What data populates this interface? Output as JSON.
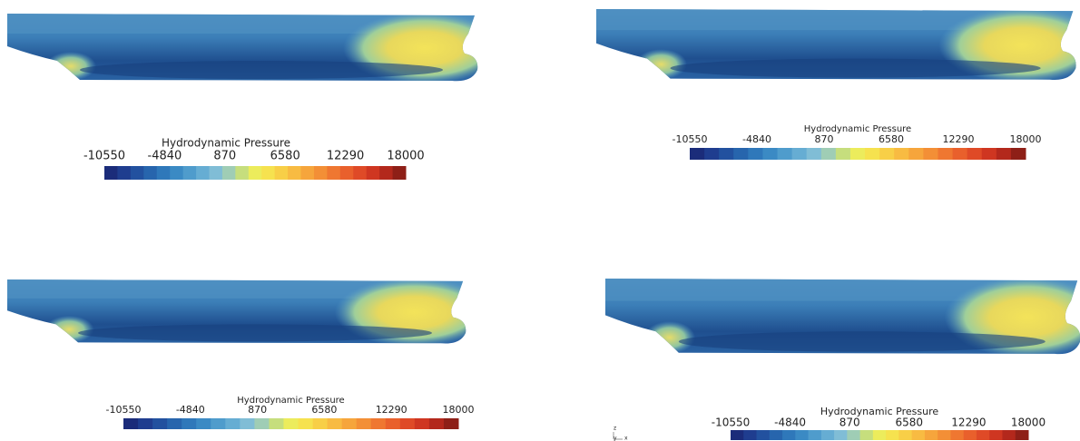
{
  "panels": [
    {
      "colorbar": {
        "title": "Hydrodynamic Pressure",
        "ticks": [
          -10550,
          -4840,
          870,
          6580,
          12290,
          18000
        ]
      }
    },
    {
      "colorbar": {
        "title": "Hydrodynamic Pressure",
        "ticks": [
          -10550,
          -4840,
          870,
          6580,
          12290,
          18000
        ]
      }
    },
    {
      "colorbar": {
        "title": "Hydrodynamic Pressure",
        "ticks": [
          -10550,
          -4840,
          870,
          6580,
          12290,
          18000
        ]
      }
    },
    {
      "colorbar": {
        "title": "Hydrodynamic Pressure",
        "ticks": [
          -10550,
          -4840,
          870,
          6580,
          12290,
          18000
        ]
      }
    }
  ],
  "axis_triad": {
    "z": "z",
    "y": "y",
    "x": "x"
  }
}
